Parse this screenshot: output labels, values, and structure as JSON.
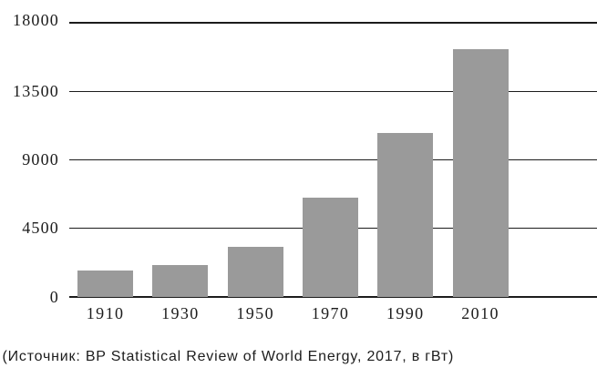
{
  "chart_data": {
    "type": "bar",
    "categories": [
      "1910",
      "1930",
      "1950",
      "1970",
      "1990",
      "2010"
    ],
    "values": [
      1750,
      2100,
      3270,
      6500,
      10790,
      16250
    ],
    "title": "",
    "xlabel": "",
    "ylabel": "",
    "ylim": [
      0,
      18000
    ],
    "yticks": [
      0,
      4500,
      9000,
      13500,
      18000
    ],
    "grid": "horizontal",
    "legend": "none",
    "bar_color": "#9a9a9a",
    "axis_color": "#1c1c1c",
    "text_color": "#1c1c1c",
    "caption": "(Источник: BP Statistical Review of World Energy, 2017, в гВт)"
  }
}
